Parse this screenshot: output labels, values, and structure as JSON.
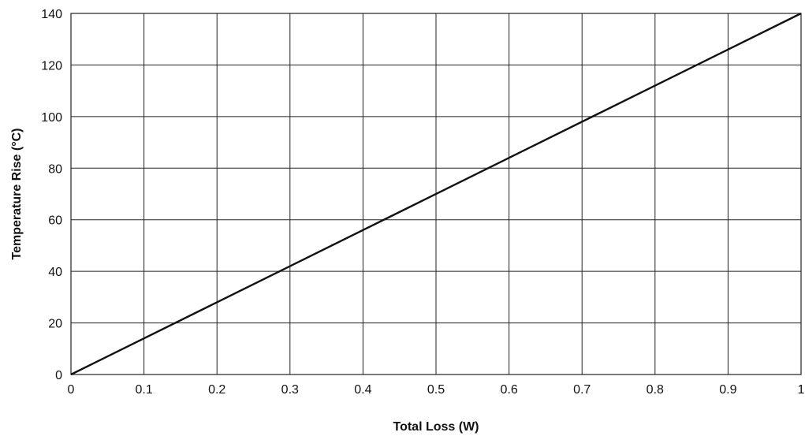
{
  "chart_data": {
    "type": "line",
    "title": "",
    "xlabel": "Total Loss (W)",
    "ylabel": "Temperature Rise (°C)",
    "xlim": [
      0,
      1
    ],
    "ylim": [
      0,
      140
    ],
    "grid": true,
    "x_ticks": [
      0,
      0.1,
      0.2,
      0.3,
      0.4,
      0.5,
      0.6,
      0.7,
      0.8,
      0.9,
      1
    ],
    "x_tick_labels": [
      "0",
      "0.1",
      "0.2",
      "0.3",
      "0.4",
      "0.5",
      "0.6",
      "0.7",
      "0.8",
      "0.9",
      "1"
    ],
    "y_ticks": [
      0,
      20,
      40,
      60,
      80,
      100,
      120,
      140
    ],
    "y_tick_labels": [
      "0",
      "20",
      "40",
      "60",
      "80",
      "100",
      "120",
      "140"
    ],
    "series": [
      {
        "x": [
          0,
          1
        ],
        "y": [
          0,
          140
        ]
      }
    ],
    "line_color": "#111111",
    "grid_color": "#222222"
  }
}
